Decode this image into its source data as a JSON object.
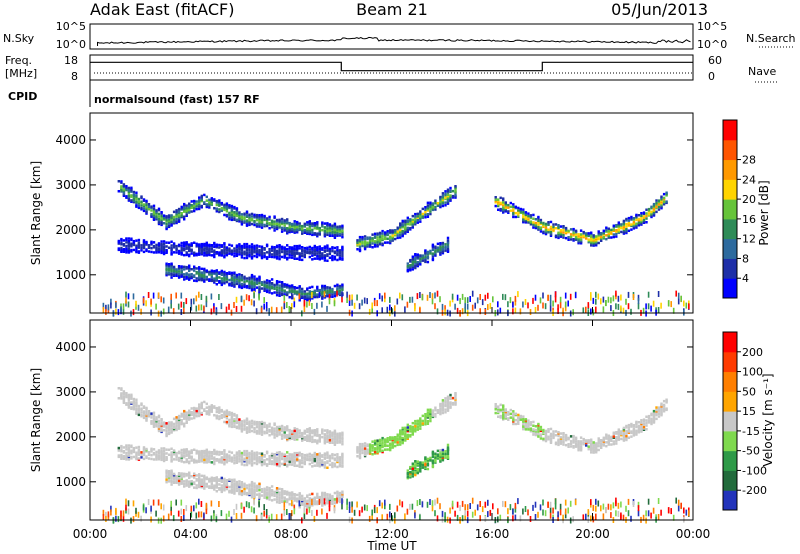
{
  "header": {
    "station": "Adak East (fitACF)",
    "beam": "Beam 21",
    "date": "05/Jun/2013"
  },
  "nsky_panel": {
    "left_label": "N.Sky",
    "left_ticks": [
      "10^5",
      "10^0"
    ],
    "right_ticks": [
      "10^5",
      "10^0"
    ],
    "right_label": "N.Search"
  },
  "freq_panel": {
    "left_label_line1": "Freq.",
    "left_label_line2": "[MHz]",
    "left_ticks": [
      "18",
      "8"
    ],
    "right_ticks": [
      "60",
      "0"
    ],
    "right_label": "Nave"
  },
  "cpid_panel": {
    "label": "CPID",
    "text": "normalsound (fast) 157 RF"
  },
  "colors": {
    "power": [
      "#0000ff",
      "#1e2fa8",
      "#2d6a9e",
      "#2e8b57",
      "#66c43a",
      "#ffd400",
      "#ff9900",
      "#ff5500",
      "#ff0000"
    ],
    "velocity": [
      "#2233bb",
      "#226b3c",
      "#2e9a48",
      "#7fd94e",
      "#c8c8c8",
      "#ffa500",
      "#ff7f00",
      "#ff3b00",
      "#ff0000"
    ]
  },
  "chart_data": [
    {
      "type": "heatmap",
      "title": "",
      "xlabel": "",
      "ylabel": "Slant Range [km]",
      "x_range_hours": [
        0,
        24
      ],
      "ylim": [
        150,
        4600
      ],
      "yticks": [
        "1000",
        "2000",
        "3000",
        "4000"
      ],
      "colorbar": {
        "label": "Power [dB]",
        "ticks": [
          "4",
          "8",
          "12",
          "16",
          "20",
          "24",
          "28"
        ],
        "range": [
          0,
          32
        ]
      },
      "echo_bands_km": [
        {
          "name": "",
          "points": [
            [
              1.0,
              3050
            ],
            [
              3.0,
              2200
            ],
            [
              4.5,
              2700
            ],
            [
              6.0,
              2300
            ],
            [
              8.0,
              2100
            ],
            [
              10.0,
              2000
            ]
          ],
          "peak_db": 18
        },
        {
          "name": "",
          "points": [
            [
              10.5,
              1700
            ],
            [
              12.0,
              1900
            ],
            [
              13.5,
              2500
            ],
            [
              14.5,
              2900
            ]
          ],
          "peak_db": 20
        },
        {
          "name": "",
          "points": [
            [
              16.0,
              2700
            ],
            [
              17.0,
              2400
            ],
            [
              18.0,
              2100
            ],
            [
              20.0,
              1800
            ],
            [
              22.0,
              2300
            ],
            [
              23.0,
              2800
            ]
          ],
          "peak_db": 26
        },
        {
          "name": "",
          "points": [
            [
              1.0,
              1700
            ],
            [
              4.0,
              1600
            ],
            [
              7.0,
              1550
            ],
            [
              10.0,
              1500
            ]
          ],
          "peak_db": 6
        },
        {
          "name": "",
          "points": [
            [
              3.0,
              1150
            ],
            [
              6.0,
              900
            ],
            [
              8.5,
              600
            ],
            [
              10.0,
              700
            ]
          ],
          "peak_db": 14
        },
        {
          "name": "",
          "points": [
            [
              12.5,
              1200
            ],
            [
              13.5,
              1500
            ],
            [
              14.2,
              1700
            ]
          ],
          "peak_db": 14
        }
      ]
    },
    {
      "type": "heatmap",
      "title": "",
      "xlabel": "Time UT",
      "ylabel": "Slant Range [km]",
      "x_range_hours": [
        0,
        24
      ],
      "ylim": [
        150,
        4600
      ],
      "yticks": [
        "1000",
        "2000",
        "3000",
        "4000"
      ],
      "xticks": [
        "00:00",
        "04:00",
        "08:00",
        "12:00",
        "16:00",
        "20:00",
        "00:00"
      ],
      "colorbar": {
        "label": "Velocity [m s⁻¹]",
        "ticks": [
          "200",
          "100",
          "50",
          "15",
          "-15",
          "-50",
          "-100",
          "-200"
        ]
      }
    }
  ],
  "frequency_series_mhz": [
    {
      "start_hour": 0,
      "end_hour": 10,
      "value": 15.5
    },
    {
      "start_hour": 10,
      "end_hour": 18,
      "value": 11.5
    },
    {
      "start_hour": 18,
      "end_hour": 24,
      "value": 15.5
    }
  ]
}
